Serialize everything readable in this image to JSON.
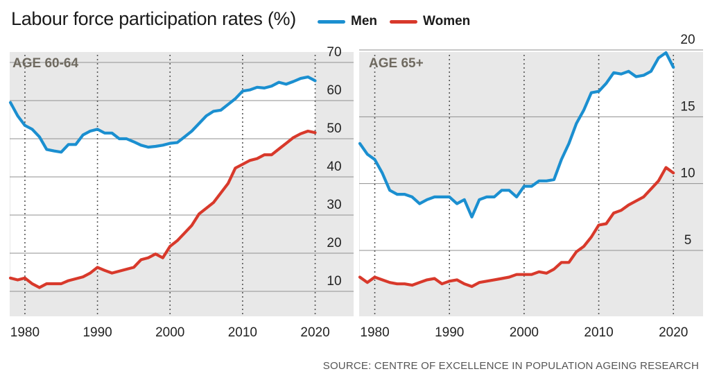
{
  "title": "Labour force participation rates (%)",
  "legend": [
    {
      "name": "Men",
      "color": "#1b8fd0"
    },
    {
      "name": "Women",
      "color": "#d8392b"
    }
  ],
  "source": "SOURCE:  CENTRE OF EXCELLENCE IN POPULATION AGEING RESEARCH",
  "chart_data": [
    {
      "type": "line",
      "title": "AGE 60-64",
      "xlim": [
        1978,
        2021
      ],
      "ylim": [
        5,
        72
      ],
      "x_ticks": [
        1980,
        1990,
        2000,
        2010,
        2020
      ],
      "y_ticks": [
        10,
        20,
        30,
        40,
        50,
        60,
        70
      ],
      "grid": true,
      "series": [
        {
          "name": "Men",
          "color": "#1b8fd0",
          "x": [
            1978,
            1979,
            1980,
            1981,
            1982,
            1983,
            1984,
            1985,
            1986,
            1987,
            1988,
            1989,
            1990,
            1991,
            1992,
            1993,
            1994,
            1995,
            1996,
            1997,
            1998,
            1999,
            2000,
            2001,
            2002,
            2003,
            2004,
            2005,
            2006,
            2007,
            2008,
            2009,
            2010,
            2011,
            2012,
            2013,
            2014,
            2015,
            2016,
            2017,
            2018,
            2019,
            2020
          ],
          "y": [
            59.5,
            56.0,
            53.5,
            52.5,
            50.5,
            47.2,
            46.8,
            46.5,
            48.5,
            48.5,
            51.0,
            52.0,
            52.5,
            51.5,
            51.5,
            50.0,
            50.0,
            49.2,
            48.3,
            47.8,
            48.0,
            48.3,
            48.8,
            49.0,
            50.5,
            52.0,
            54.0,
            56.0,
            57.2,
            57.5,
            59.0,
            60.5,
            62.5,
            62.8,
            63.5,
            63.3,
            63.8,
            64.8,
            64.3,
            65.0,
            65.8,
            66.2,
            65.2
          ]
        },
        {
          "name": "Women",
          "color": "#d8392b",
          "x": [
            1978,
            1979,
            1980,
            1981,
            1982,
            1983,
            1984,
            1985,
            1986,
            1987,
            1988,
            1989,
            1990,
            1991,
            1992,
            1993,
            1994,
            1995,
            1996,
            1997,
            1998,
            1999,
            2000,
            2001,
            2002,
            2003,
            2004,
            2005,
            2006,
            2007,
            2008,
            2009,
            2010,
            2011,
            2012,
            2013,
            2014,
            2015,
            2016,
            2017,
            2018,
            2019,
            2020
          ],
          "y": [
            13.5,
            13.0,
            13.5,
            12.0,
            11.0,
            12.0,
            12.0,
            12.0,
            12.8,
            13.3,
            13.8,
            14.8,
            16.3,
            15.5,
            14.8,
            15.3,
            15.8,
            16.3,
            18.3,
            18.8,
            19.8,
            18.8,
            21.8,
            23.3,
            25.3,
            27.3,
            30.3,
            31.8,
            33.3,
            35.8,
            38.3,
            42.3,
            43.3,
            44.3,
            44.8,
            45.8,
            45.8,
            47.3,
            48.8,
            50.3,
            51.3,
            52.0,
            51.6
          ]
        }
      ]
    },
    {
      "type": "line",
      "title": "AGE 65+",
      "xlim": [
        1978,
        2021
      ],
      "ylim": [
        1.2,
        20.5
      ],
      "x_ticks": [
        1980,
        1990,
        2000,
        2010,
        2020
      ],
      "y_ticks": [
        5,
        10,
        15,
        20
      ],
      "grid": true,
      "series": [
        {
          "name": "Men",
          "color": "#1b8fd0",
          "x": [
            1978,
            1979,
            1980,
            1981,
            1982,
            1983,
            1984,
            1985,
            1986,
            1987,
            1988,
            1989,
            1990,
            1991,
            1992,
            1993,
            1994,
            1995,
            1996,
            1997,
            1998,
            1999,
            2000,
            2001,
            2002,
            2003,
            2004,
            2005,
            2006,
            2007,
            2008,
            2009,
            2010,
            2011,
            2012,
            2013,
            2014,
            2015,
            2016,
            2017,
            2018,
            2019,
            2020
          ],
          "y": [
            13.0,
            12.2,
            11.8,
            10.8,
            9.5,
            9.2,
            9.2,
            9.0,
            8.5,
            8.8,
            9.0,
            9.0,
            9.0,
            8.5,
            8.8,
            7.5,
            8.8,
            9.0,
            9.0,
            9.5,
            9.5,
            9.0,
            9.8,
            9.8,
            10.2,
            10.2,
            10.3,
            11.8,
            13.0,
            14.5,
            15.5,
            16.8,
            16.9,
            17.5,
            18.3,
            18.2,
            18.4,
            18.0,
            18.1,
            18.4,
            19.4,
            19.8,
            18.7
          ]
        },
        {
          "name": "Women",
          "color": "#d8392b",
          "x": [
            1978,
            1979,
            1980,
            1981,
            1982,
            1983,
            1984,
            1985,
            1986,
            1987,
            1988,
            1989,
            1990,
            1991,
            1992,
            1993,
            1994,
            1995,
            1996,
            1997,
            1998,
            1999,
            2000,
            2001,
            2002,
            2003,
            2004,
            2005,
            2006,
            2007,
            2008,
            2009,
            2010,
            2011,
            2012,
            2013,
            2014,
            2015,
            2016,
            2017,
            2018,
            2019,
            2020
          ],
          "y": [
            3.0,
            2.6,
            3.0,
            2.8,
            2.6,
            2.5,
            2.5,
            2.4,
            2.6,
            2.8,
            2.9,
            2.5,
            2.7,
            2.8,
            2.5,
            2.3,
            2.6,
            2.7,
            2.8,
            2.9,
            3.0,
            3.2,
            3.2,
            3.2,
            3.4,
            3.3,
            3.6,
            4.1,
            4.1,
            4.9,
            5.3,
            6.0,
            6.9,
            7.0,
            7.8,
            8.0,
            8.4,
            8.7,
            9.0,
            9.6,
            10.2,
            11.2,
            10.8
          ]
        }
      ]
    }
  ]
}
